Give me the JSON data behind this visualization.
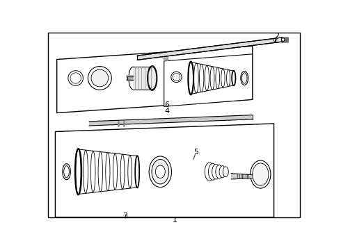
{
  "bg_color": "#ffffff",
  "lc": "#000000",
  "gray1": "#e8e8e8",
  "gray2": "#d0d0d0",
  "gray3": "#b0b0b0"
}
